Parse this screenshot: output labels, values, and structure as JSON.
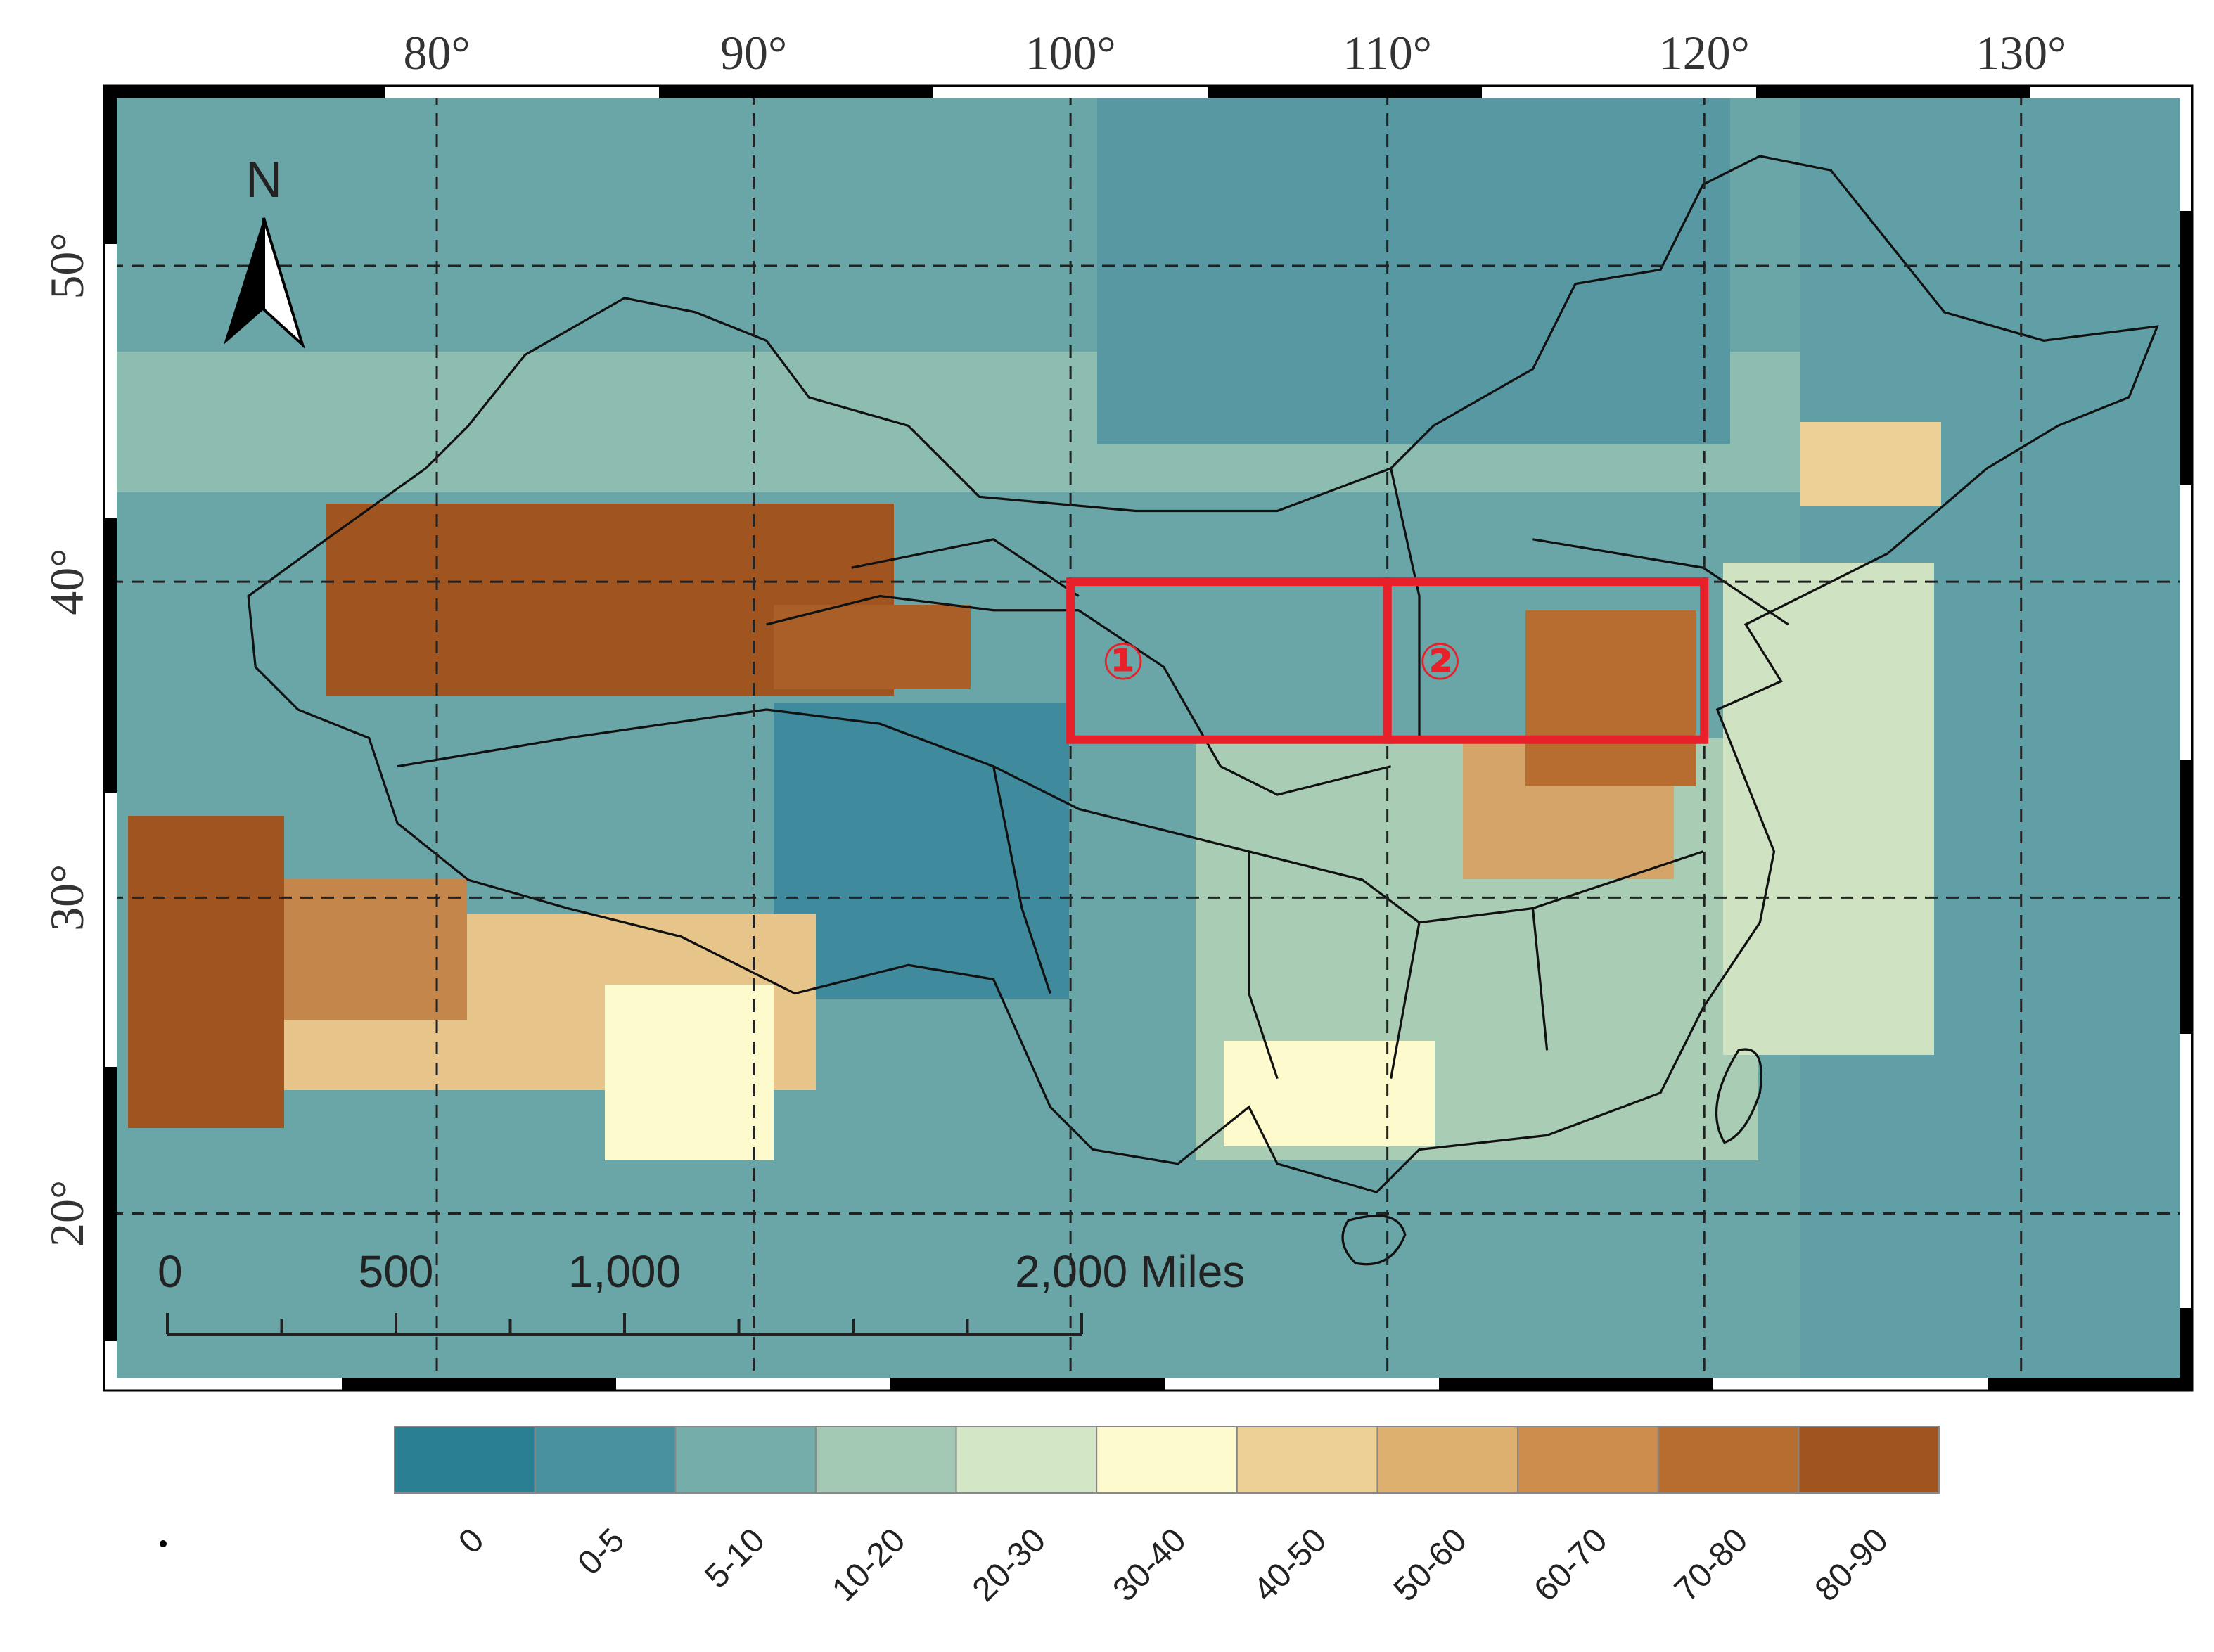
{
  "map": {
    "lon_range": [
      69.7,
      135.2
    ],
    "lat_range": [
      14.6,
      55.5
    ],
    "lon_ticks": [
      {
        "value": 80,
        "label": "80°"
      },
      {
        "value": 90,
        "label": "90°"
      },
      {
        "value": 100,
        "label": "100°"
      },
      {
        "value": 110,
        "label": "110°"
      },
      {
        "value": 120,
        "label": "120°"
      },
      {
        "value": 130,
        "label": "130°"
      }
    ],
    "lat_ticks": [
      {
        "value": 20,
        "label": "20°"
      },
      {
        "value": 30,
        "label": "30°"
      },
      {
        "value": 40,
        "label": "40°"
      },
      {
        "value": 50,
        "label": "50°"
      }
    ],
    "north_label": "N",
    "scale_bar": [
      0,
      500,
      {
        "value": 1000,
        "label": "1,000"
      },
      {
        "value": 2000,
        "label": "2,000 Miles"
      }
    ],
    "regions": [
      {
        "label": "①",
        "lon": [
          100,
          110
        ],
        "lat": [
          35,
          40
        ]
      },
      {
        "label": "②",
        "lon": [
          110,
          120
        ],
        "lat": [
          35,
          40
        ]
      }
    ],
    "legend": [
      {
        "label": "0",
        "color": "#2b7f93"
      },
      {
        "label": "0-5",
        "color": "#4a91a0"
      },
      {
        "label": "5-10",
        "color": "#74ada9"
      },
      {
        "label": "10-20",
        "color": "#a3c8b3"
      },
      {
        "label": "20-30",
        "color": "#d3e6c5"
      },
      {
        "label": "30-40",
        "color": "#fdfbcd"
      },
      {
        "label": "40-50",
        "color": "#ecd095"
      },
      {
        "label": "50-60",
        "color": "#ddb070"
      },
      {
        "label": "60-70",
        "color": "#cc8d4d"
      },
      {
        "label": "70-80",
        "color": "#b66d2f"
      },
      {
        "label": "80-90",
        "color": "#a0541f"
      }
    ]
  }
}
